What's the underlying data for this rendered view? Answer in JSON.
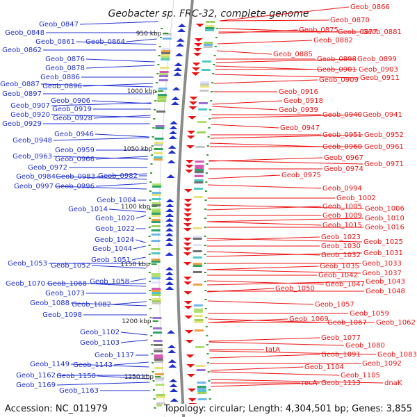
{
  "title": "Geobacter sp. FRC-32, complete genome",
  "footer": {
    "accession": "Accession: NC_011979",
    "summary": "Topology: circular; Length: 4,304,501 bp; Genes: 3,855"
  },
  "colors": {
    "left_strand": "#1f2fd0",
    "right_strand": "#ee1111",
    "backbone": "#8a8a8a",
    "marker": "#2e9e2e"
  },
  "kbp_marks": [
    "950 kbp",
    "1000 kbp",
    "1050 kbp",
    "1100 kbp",
    "1150 kbp",
    "1200 kbp",
    "1250 kbp"
  ],
  "left_genes": [
    "Geob_0847",
    "Geob_0848",
    "Geob_0861",
    "Geob_0864",
    "Geob_0862",
    "Geob_0876",
    "Geob_0878",
    "Geob_0886",
    "Geob_0887",
    "Geob_0896",
    "Geob_0897",
    "Geob_0906",
    "Geob_0907",
    "Geob_0919",
    "Geob_0920",
    "Geob_0928",
    "Geob_0929",
    "Geob_0946",
    "Geob_0948",
    "Geob_0959",
    "Geob_0963",
    "Geob_0966",
    "Geob_0972",
    "Geob_0984",
    "Geob_0983",
    "Geob_0982",
    "Geob_0997",
    "Geob_0996",
    "Geob_1004",
    "Geob_1014",
    "Geob_1020",
    "Geob_1022",
    "Geob_1024",
    "Geob_1044",
    "Geob_1053",
    "Geob_1052",
    "Geob_1051",
    "Geob_1070",
    "Geob_1068",
    "Geob_1058",
    "Geob_1073",
    "Geob_1088",
    "Geob_1082",
    "Geob_1098",
    "Geob_1102",
    "Geob_1103",
    "Geob_1137",
    "Geob_1149",
    "Geob_1143",
    "Geob_1162",
    "Geob_1150",
    "Geob_1169",
    "Geob_1163"
  ],
  "right_genes": [
    "Geob_0866",
    "Geob_0870",
    "Geob_0875",
    "Geob_0877",
    "Geob_0881",
    "Geob_0882",
    "Geob_0885",
    "Geob_0898",
    "Geob_0899",
    "Geob_0901",
    "Geob_0903",
    "Geob_0909",
    "Geob_0911",
    "Geob_0916",
    "Geob_0918",
    "Geob_0939",
    "Geob_0940",
    "Geob_0941",
    "Geob_0947",
    "Geob_0951",
    "Geob_0952",
    "Geob_0960",
    "Geob_0961",
    "Geob_0967",
    "Geob_0971",
    "Geob_0974",
    "Geob_0975",
    "Geob_0994",
    "Geob_1002",
    "Geob_1005",
    "Geob_1006",
    "Geob_1009",
    "Geob_1010",
    "Geob_1015",
    "Geob_1016",
    "Geob_1023",
    "Geob_1025",
    "Geob_1030",
    "Geob_1031",
    "Geob_1032",
    "Geob_1033",
    "Geob_1035",
    "Geob_1037",
    "Geob_1042",
    "Geob_1043",
    "Geob_1047",
    "Geob_1048",
    "Geob_1050",
    "Geob_1057",
    "Geob_1059",
    "Geob_1069",
    "Geob_1067",
    "Geob_1062",
    "Geob_1077",
    "Geob_1080",
    "tatA",
    "Geob_1091",
    "Geob_1083",
    "Geob_1092",
    "Geob_1104",
    "Geob_1105",
    "recA",
    "Geob_1113",
    "dnaK"
  ]
}
